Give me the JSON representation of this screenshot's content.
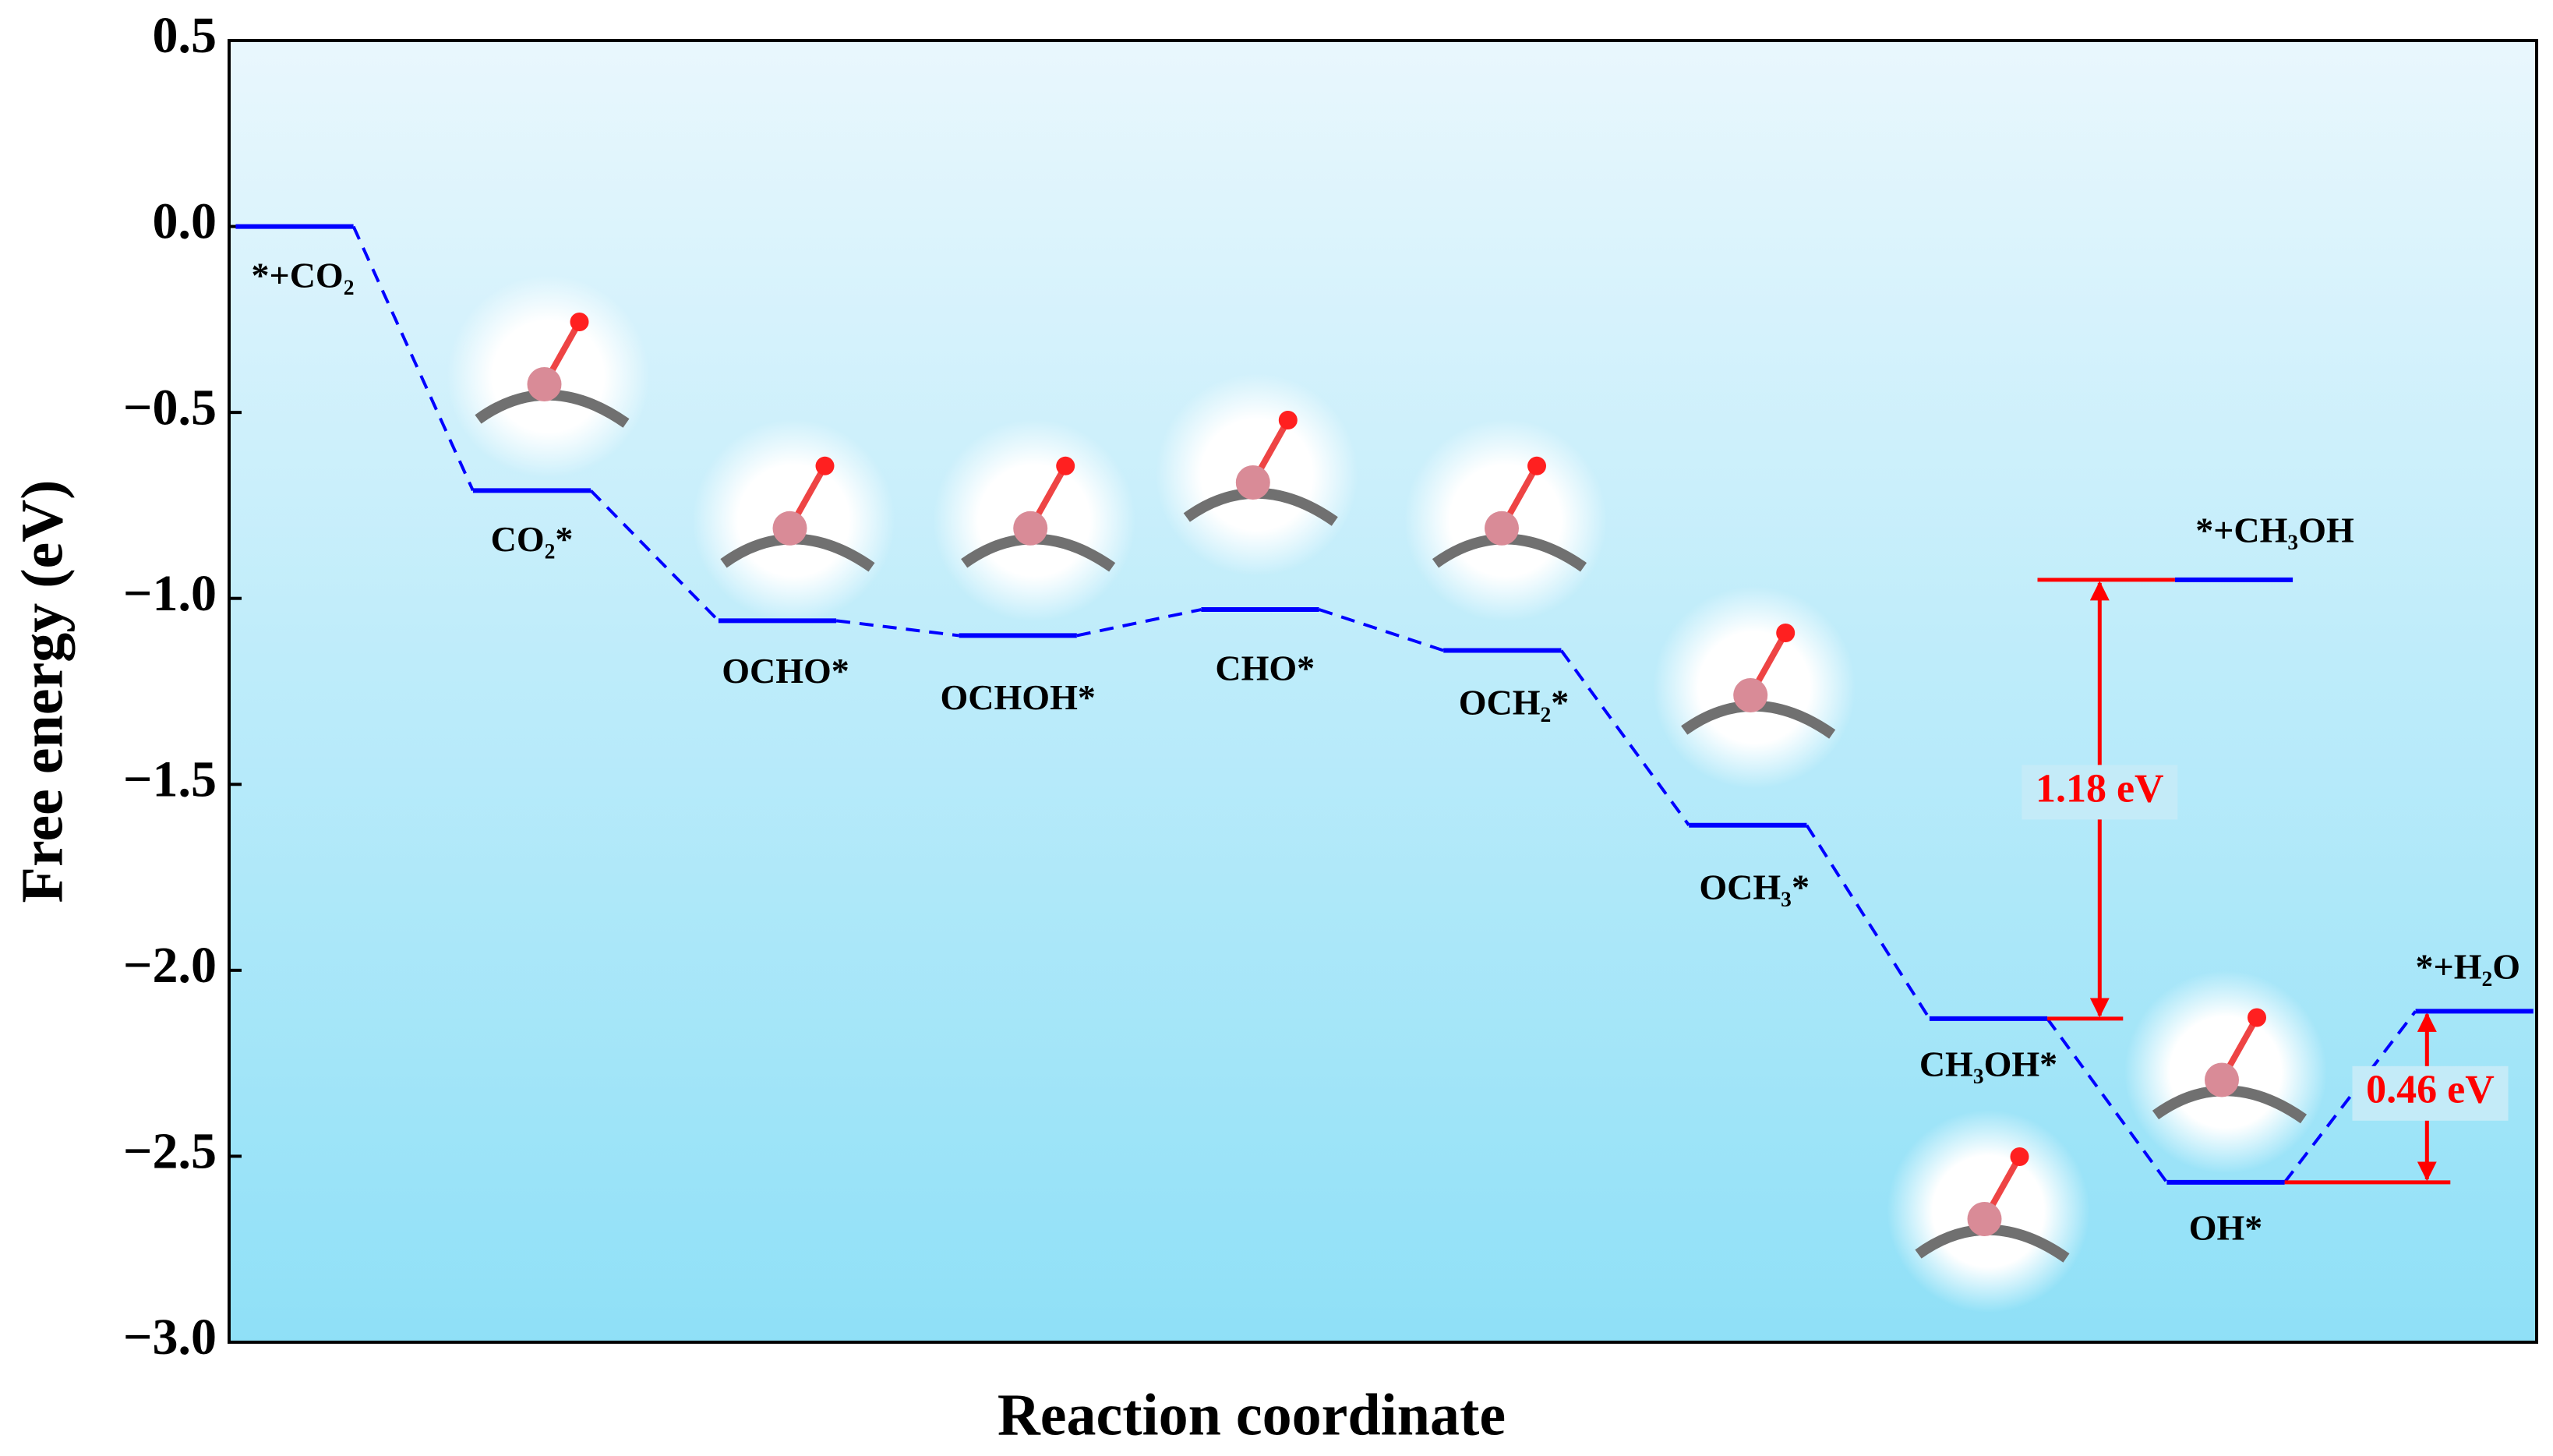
{
  "chart_data": {
    "type": "energy-profile",
    "xlabel": "Reaction coordinate",
    "ylabel": "Free energy (eV)",
    "categories": [
      "*+CO₂",
      "CO₂*",
      "OCHO*",
      "OCHOH*",
      "CHO*",
      "OCH₂*",
      "OCH₃*",
      "CH₃OH*",
      "*+CH₃OH",
      "OH*",
      "*+H₂O"
    ],
    "values": [
      0.0,
      -0.71,
      -1.06,
      -1.1,
      -1.03,
      -1.14,
      -1.61,
      -2.13,
      -0.95,
      -2.57,
      -2.11
    ],
    "color": "#0000ff",
    "annotation_color": "#ff0000",
    "annotations": [
      {
        "text": "1.18 eV"
      },
      {
        "text": "0.46 eV"
      }
    ],
    "ylim": [
      -3.0,
      0.5
    ],
    "yticks": [
      0.5,
      {
        "value": 0,
        "label": "0.0"
      },
      {
        "value": -0.5,
        "label": "−0.5"
      },
      {
        "value": -1.0,
        "label": "−1.0"
      },
      {
        "value": -1.5,
        "label": "−1.5"
      },
      {
        "value": -2.0,
        "label": "−2.0"
      },
      {
        "value": -2.5,
        "label": "−2.5"
      },
      {
        "value": -3.0,
        "label": "−3.0"
      }
    ]
  }
}
